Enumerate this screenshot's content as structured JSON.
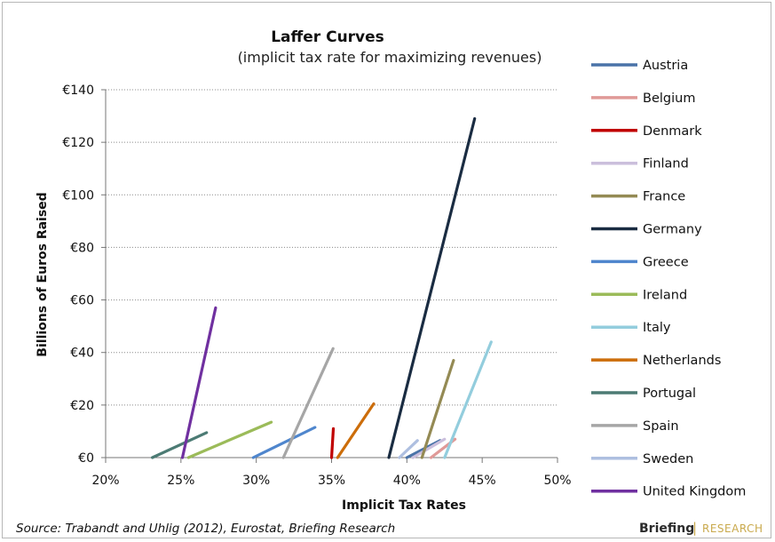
{
  "chart_data": {
    "type": "line",
    "title": "Laffer Curves",
    "subtitle": "(implicit tax rate for maximizing revenues)",
    "xlabel": "Implicit Tax Rates",
    "ylabel": "Billions of Euros Raised",
    "xlim": [
      0.2,
      0.5
    ],
    "ylim": [
      0,
      140
    ],
    "x_ticks": [
      0.2,
      0.25,
      0.3,
      0.35,
      0.4,
      0.45,
      0.5
    ],
    "x_tick_labels": [
      "20%",
      "25%",
      "30%",
      "35%",
      "40%",
      "45%",
      "50%"
    ],
    "y_ticks": [
      0,
      20,
      40,
      60,
      80,
      100,
      120,
      140
    ],
    "y_tick_labels": [
      "€0",
      "€20",
      "€40",
      "€60",
      "€80",
      "€100",
      "€120",
      "€140"
    ],
    "grid": "horizontal-dotted",
    "legend": "right",
    "series": [
      {
        "name": "Austria",
        "color": "#4a73a8",
        "points": [
          [
            0.4,
            0
          ],
          [
            0.422,
            6.5
          ]
        ]
      },
      {
        "name": "Belgium",
        "color": "#e09a98",
        "points": [
          [
            0.416,
            0
          ],
          [
            0.432,
            7
          ]
        ]
      },
      {
        "name": "Denmark",
        "color": "#c00000",
        "points": [
          [
            0.35,
            0
          ],
          [
            0.3512,
            11
          ]
        ]
      },
      {
        "name": "Finland",
        "color": "#cbbfdc",
        "points": [
          [
            0.404,
            0
          ],
          [
            0.425,
            7
          ]
        ]
      },
      {
        "name": "France",
        "color": "#948a54",
        "points": [
          [
            0.41,
            0
          ],
          [
            0.431,
            37
          ]
        ]
      },
      {
        "name": "Germany",
        "color": "#1a2c42",
        "points": [
          [
            0.388,
            0
          ],
          [
            0.445,
            129
          ]
        ]
      },
      {
        "name": "Greece",
        "color": "#4f86cd",
        "points": [
          [
            0.298,
            0
          ],
          [
            0.339,
            11.5
          ]
        ]
      },
      {
        "name": "Ireland",
        "color": "#9bbb59",
        "points": [
          [
            0.255,
            0
          ],
          [
            0.31,
            13.5
          ]
        ]
      },
      {
        "name": "Italy",
        "color": "#93cddd",
        "points": [
          [
            0.425,
            0
          ],
          [
            0.456,
            44
          ]
        ]
      },
      {
        "name": "Netherlands",
        "color": "#cc6d0a",
        "points": [
          [
            0.354,
            0
          ],
          [
            0.378,
            20.5
          ]
        ]
      },
      {
        "name": "Portugal",
        "color": "#4c7b74",
        "points": [
          [
            0.231,
            0
          ],
          [
            0.267,
            9.5
          ]
        ]
      },
      {
        "name": "Spain",
        "color": "#a6a6a6",
        "points": [
          [
            0.318,
            0
          ],
          [
            0.351,
            41.5
          ]
        ]
      },
      {
        "name": "Sweden",
        "color": "#aebfe0",
        "points": [
          [
            0.395,
            0
          ],
          [
            0.407,
            6.5
          ]
        ]
      },
      {
        "name": "United Kingdom",
        "color": "#7030a0",
        "points": [
          [
            0.251,
            0
          ],
          [
            0.273,
            57
          ]
        ]
      }
    ]
  },
  "footer": {
    "source": "Source: Trabandt and Uhlig (2012), Eurostat, Briefing Research",
    "brand_name": "Briefing",
    "brand_separator": "|",
    "brand_suffix": "RESEARCH"
  }
}
